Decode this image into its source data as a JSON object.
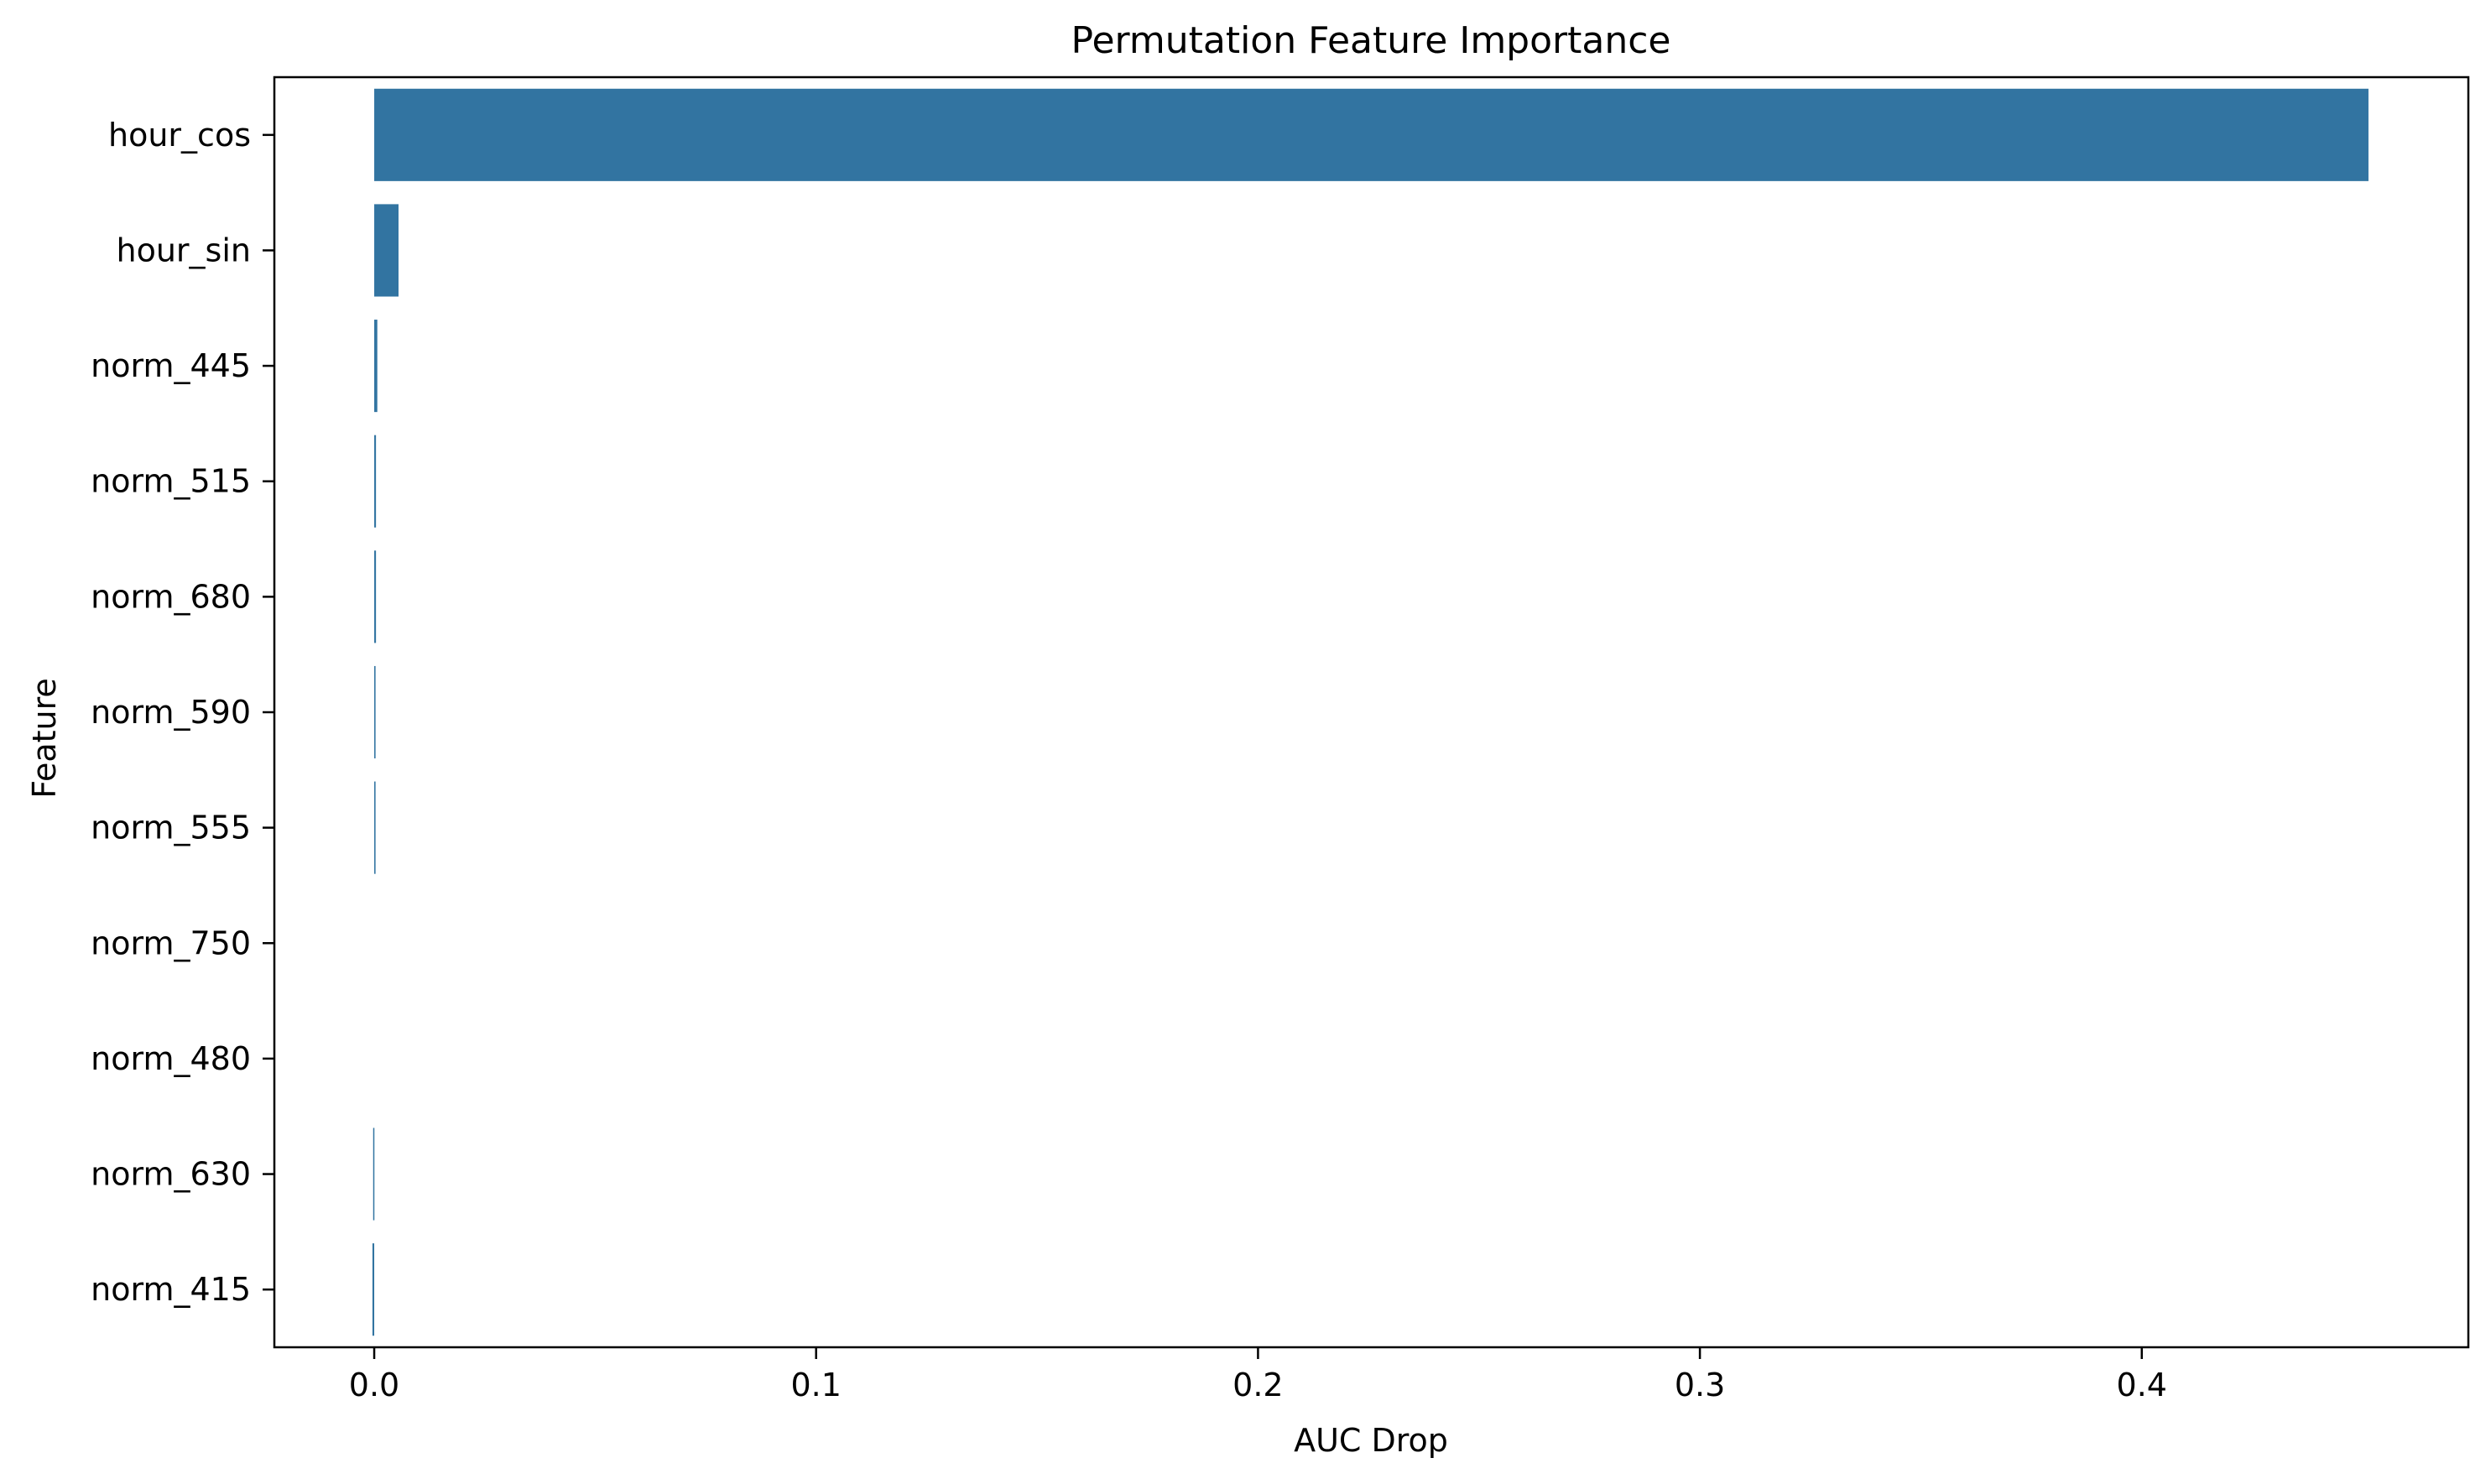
{
  "chart_data": {
    "type": "bar",
    "orientation": "horizontal",
    "title": "Permutation Feature Importance",
    "xlabel": "AUC Drop",
    "ylabel": "Feature",
    "categories": [
      "hour_cos",
      "hour_sin",
      "norm_445",
      "norm_515",
      "norm_680",
      "norm_590",
      "norm_555",
      "norm_750",
      "norm_480",
      "norm_630",
      "norm_415"
    ],
    "values": [
      0.4513,
      0.0055,
      0.0007,
      0.0004,
      0.0004,
      0.0003,
      0.0003,
      0.0,
      0.0,
      -0.0002,
      -0.0004
    ],
    "xlim": [
      -0.0226,
      0.4739
    ],
    "xticks": [
      0.0,
      0.1,
      0.2,
      0.3,
      0.4
    ],
    "xtick_labels": [
      "0.0",
      "0.1",
      "0.2",
      "0.3",
      "0.4"
    ],
    "grid": false,
    "legend": null,
    "colors": {
      "bar": "#3274a1",
      "axis": "#000000",
      "background": "#ffffff"
    }
  }
}
